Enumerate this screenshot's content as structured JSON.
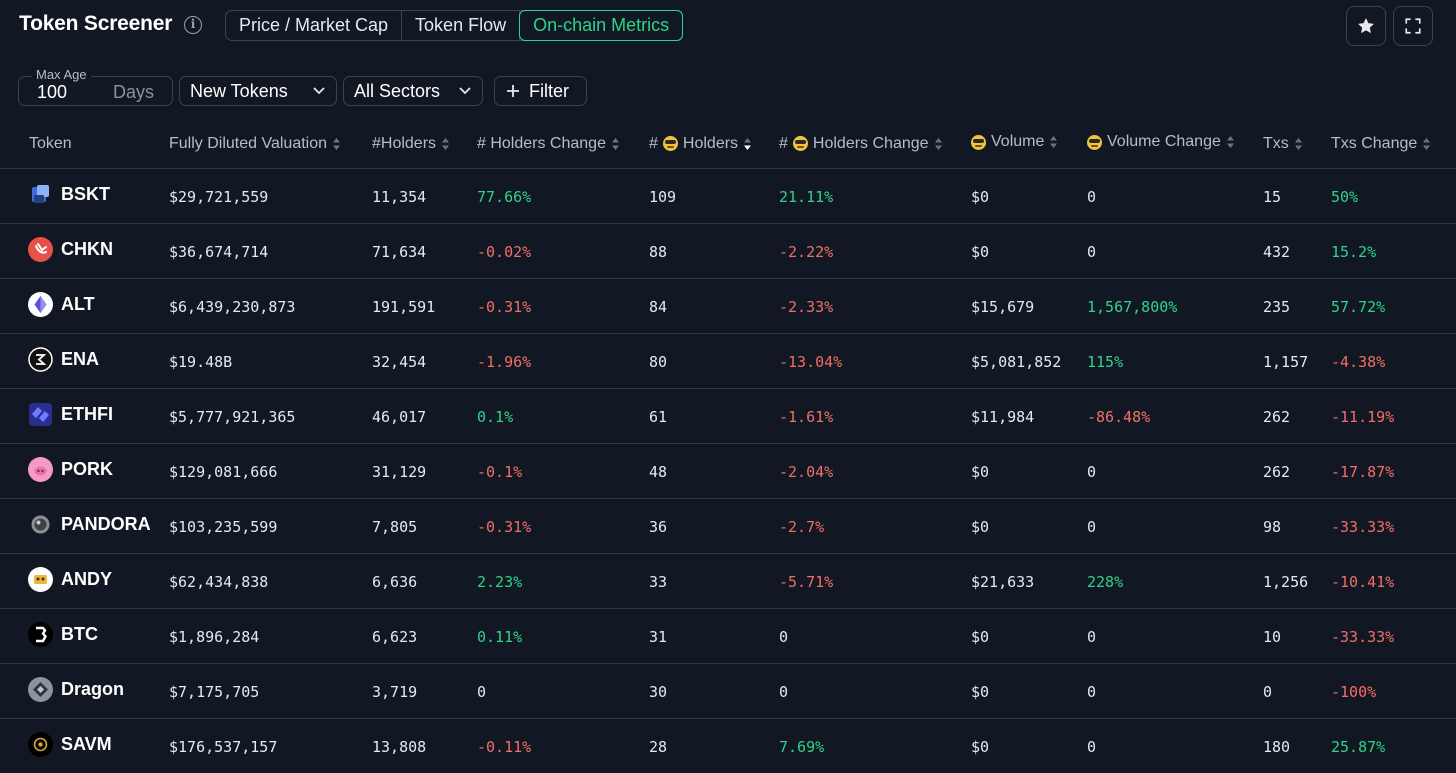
{
  "header": {
    "title": "Token Screener",
    "info_icon": "i",
    "tabs": [
      {
        "label": "Price / Market Cap",
        "active": false
      },
      {
        "label": "Token Flow",
        "active": false
      },
      {
        "label": "On-chain Metrics",
        "active": true
      }
    ],
    "icons": [
      "star-icon",
      "expand-icon"
    ]
  },
  "filters": {
    "max_age_label": "Max Age",
    "max_age_value": "100",
    "max_age_unit": "Days",
    "token_type": "New Tokens",
    "sectors": "All Sectors",
    "filter_label": "Filter"
  },
  "colors": {
    "background": "#111823",
    "accent_green": "#2fd38a",
    "negative_red": "#f36d67",
    "border": "#3a4350"
  },
  "table": {
    "columns": [
      "Token",
      "Fully Diluted Valuation",
      "#Holders",
      "# Holders Change",
      "# 🤓 Holders",
      "# 🤓 Holders Change",
      "🤓 Volume",
      "🤓 Volume Change",
      "Txs",
      "Txs Change"
    ],
    "header_labels": {
      "token": "Token",
      "fdv": "Fully Diluted Valuation",
      "holders": "#Holders",
      "holders_change": "# Holders Change",
      "sm_holders_prefix": "#",
      "sm_holders": "Holders",
      "sm_holders_change_prefix": "#",
      "sm_holders_change": "Holders Change",
      "sm_volume": "Volume",
      "sm_volume_change": "Volume Change",
      "txs": "Txs",
      "txs_change": "Txs Change"
    },
    "sorted_column": "# 🤓 Holders",
    "sort_direction": "descending",
    "rows": [
      {
        "token": "BSKT",
        "icon": "bskt-icon",
        "fdv": "$29,721,559",
        "holders": "11,354",
        "holders_change": "77.66%",
        "sm_holders": "109",
        "sm_holders_change": "21.11%",
        "sm_volume": "$0",
        "sm_volume_change": "0",
        "txs": "15",
        "txs_change": "50%"
      },
      {
        "token": "CHKN",
        "icon": "chkn-icon",
        "fdv": "$36,674,714",
        "holders": "71,634",
        "holders_change": "-0.02%",
        "sm_holders": "88",
        "sm_holders_change": "-2.22%",
        "sm_volume": "$0",
        "sm_volume_change": "0",
        "txs": "432",
        "txs_change": "15.2%"
      },
      {
        "token": "ALT",
        "icon": "alt-icon",
        "fdv": "$6,439,230,873",
        "holders": "191,591",
        "holders_change": "-0.31%",
        "sm_holders": "84",
        "sm_holders_change": "-2.33%",
        "sm_volume": "$15,679",
        "sm_volume_change": "1,567,800%",
        "txs": "235",
        "txs_change": "57.72%"
      },
      {
        "token": "ENA",
        "icon": "ena-icon",
        "fdv": "$19.48B",
        "holders": "32,454",
        "holders_change": "-1.96%",
        "sm_holders": "80",
        "sm_holders_change": "-13.04%",
        "sm_volume": "$5,081,852",
        "sm_volume_change": "115%",
        "txs": "1,157",
        "txs_change": "-4.38%"
      },
      {
        "token": "ETHFI",
        "icon": "ethfi-icon",
        "fdv": "$5,777,921,365",
        "holders": "46,017",
        "holders_change": "0.1%",
        "sm_holders": "61",
        "sm_holders_change": "-1.61%",
        "sm_volume": "$11,984",
        "sm_volume_change": "-86.48%",
        "txs": "262",
        "txs_change": "-11.19%"
      },
      {
        "token": "PORK",
        "icon": "pork-icon",
        "fdv": "$129,081,666",
        "holders": "31,129",
        "holders_change": "-0.1%",
        "sm_holders": "48",
        "sm_holders_change": "-2.04%",
        "sm_volume": "$0",
        "sm_volume_change": "0",
        "txs": "262",
        "txs_change": "-17.87%"
      },
      {
        "token": "PANDORA",
        "icon": "pandora-icon",
        "fdv": "$103,235,599",
        "holders": "7,805",
        "holders_change": "-0.31%",
        "sm_holders": "36",
        "sm_holders_change": "-2.7%",
        "sm_volume": "$0",
        "sm_volume_change": "0",
        "txs": "98",
        "txs_change": "-33.33%"
      },
      {
        "token": "ANDY",
        "icon": "andy-icon",
        "fdv": "$62,434,838",
        "holders": "6,636",
        "holders_change": "2.23%",
        "sm_holders": "33",
        "sm_holders_change": "-5.71%",
        "sm_volume": "$21,633",
        "sm_volume_change": "228%",
        "txs": "1,256",
        "txs_change": "-10.41%"
      },
      {
        "token": "BTC",
        "icon": "btc-icon",
        "fdv": "$1,896,284",
        "holders": "6,623",
        "holders_change": "0.11%",
        "sm_holders": "31",
        "sm_holders_change": "0",
        "sm_volume": "$0",
        "sm_volume_change": "0",
        "txs": "10",
        "txs_change": "-33.33%"
      },
      {
        "token": "Dragon",
        "icon": "dragon-icon",
        "fdv": "$7,175,705",
        "holders": "3,719",
        "holders_change": "0",
        "sm_holders": "30",
        "sm_holders_change": "0",
        "sm_volume": "$0",
        "sm_volume_change": "0",
        "txs": "0",
        "txs_change": "-100%"
      },
      {
        "token": "SAVM",
        "icon": "savm-icon",
        "fdv": "$176,537,157",
        "holders": "13,808",
        "holders_change": "-0.11%",
        "sm_holders": "28",
        "sm_holders_change": "7.69%",
        "sm_volume": "$0",
        "sm_volume_change": "0",
        "txs": "180",
        "txs_change": "25.87%"
      }
    ]
  }
}
